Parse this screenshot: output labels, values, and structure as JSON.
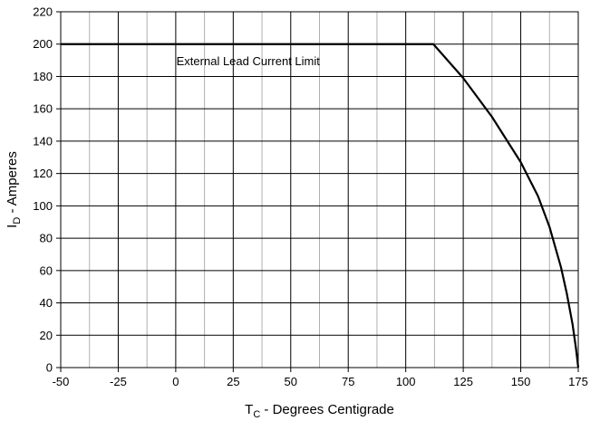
{
  "chart_data": {
    "type": "line",
    "xlabel_main": "T",
    "xlabel_sub": "C",
    "xlabel_rest": " - Degrees Centigrade",
    "ylabel_main": "I",
    "ylabel_sub": "D",
    "ylabel_rest": " - Amperes",
    "xlim": [
      -50,
      175
    ],
    "ylim": [
      0,
      220
    ],
    "x_ticks": [
      -50,
      -25,
      0,
      25,
      50,
      75,
      100,
      125,
      150,
      175
    ],
    "x_minor_step": 12.5,
    "y_ticks": [
      0,
      20,
      40,
      60,
      80,
      100,
      120,
      140,
      160,
      180,
      200,
      220
    ],
    "grid": true,
    "annotation": {
      "text": "External Lead Current Limit",
      "x": 0.3,
      "y": 187
    },
    "series": [
      {
        "x": [
          -50,
          112,
          125,
          137.5,
          150,
          157.5,
          162.5,
          167.5,
          170,
          172.5,
          174,
          175
        ],
        "y": [
          200,
          200,
          179,
          155,
          127,
          106,
          87,
          62,
          46,
          27,
          12,
          0
        ],
        "color": "#000000"
      }
    ]
  }
}
